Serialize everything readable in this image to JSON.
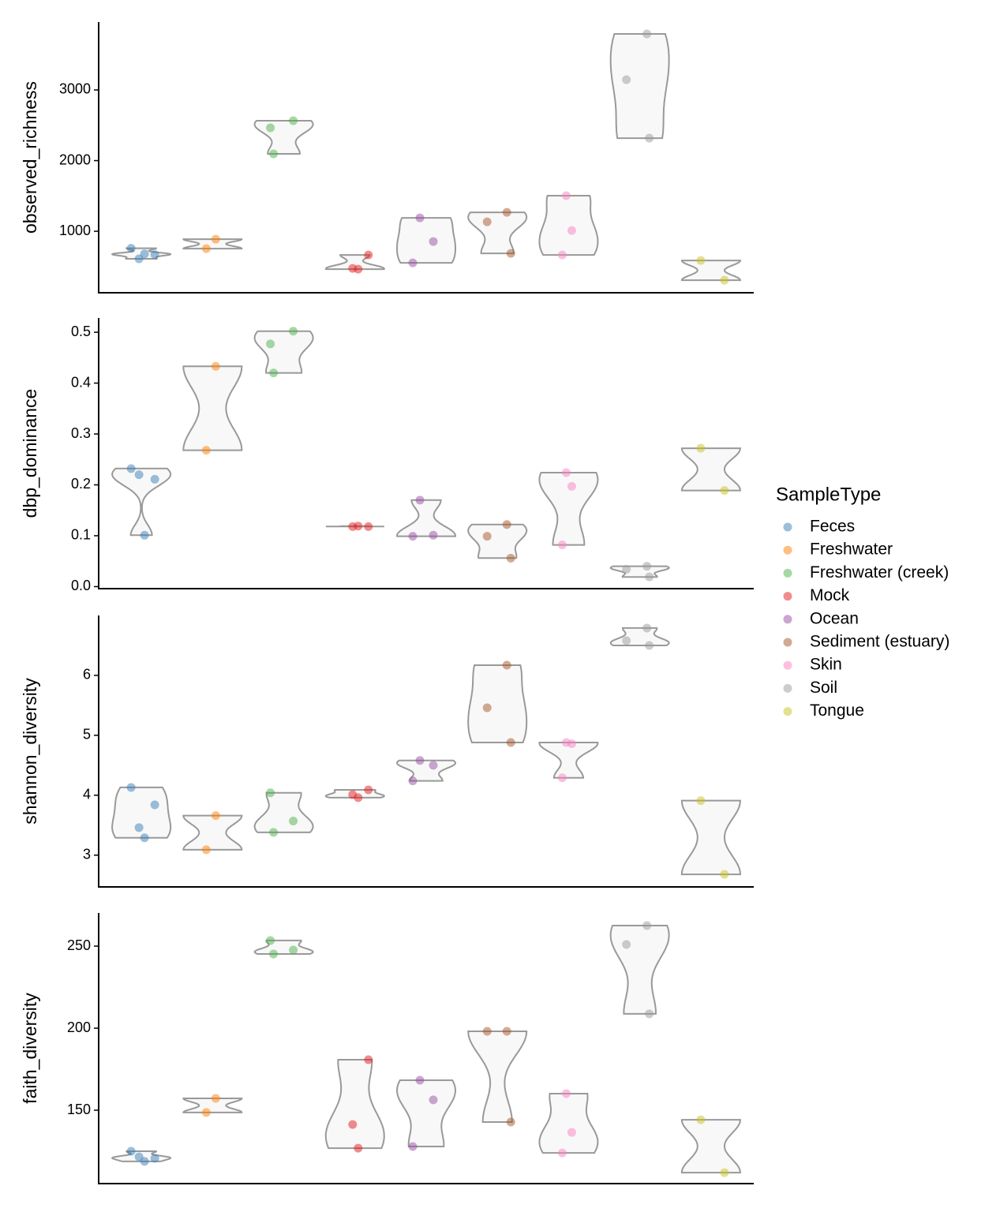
{
  "chart_data": [
    {
      "type": "violin",
      "ylabel": "observed_richness",
      "ylim": [
        130,
        3960
      ],
      "yticks": [
        1000,
        2000,
        3000
      ],
      "legend": "right",
      "legend_title": "SampleType",
      "series": [
        {
          "name": "Feces",
          "color": "#377eb8",
          "values": [
            760,
            670,
            610,
            680
          ]
        },
        {
          "name": "Freshwater",
          "color": "#ff7f00",
          "values": [
            888,
            754
          ]
        },
        {
          "name": "Freshwater (creek)",
          "color": "#4daf4a",
          "values": [
            2464,
            2564,
            2095
          ]
        },
        {
          "name": "Mock",
          "color": "#e41a1c",
          "values": [
            665,
            475,
            464
          ]
        },
        {
          "name": "Ocean",
          "color": "#984ea3",
          "values": [
            1190,
            855,
            553
          ]
        },
        {
          "name": "Sediment (estuary)",
          "color": "#a65628",
          "values": [
            1268,
            1134,
            687
          ]
        },
        {
          "name": "Skin",
          "color": "#f781bf",
          "values": [
            1503,
            1011,
            665
          ]
        },
        {
          "name": "Soil",
          "color": "#999999",
          "values": [
            3793,
            3145,
            2318
          ]
        },
        {
          "name": "Tongue",
          "color": "#c9c21f",
          "values": [
            587,
            307
          ]
        }
      ]
    },
    {
      "type": "violin",
      "ylabel": "dbp_dominance",
      "ylim": [
        -0.004,
        0.528
      ],
      "yticks": [
        {
          "value": 0,
          "label": "0.0"
        },
        0.1,
        0.2,
        0.3,
        0.4,
        0.5
      ],
      "series": [
        {
          "values": [
            0.232,
            0.211,
            0.22,
            0.101
          ]
        },
        {
          "values": [
            0.433,
            0.268
          ]
        },
        {
          "values": [
            0.477,
            0.502,
            0.42
          ]
        },
        {
          "values": [
            0.118,
            0.118,
            0.119
          ]
        },
        {
          "values": [
            0.17,
            0.101,
            0.099
          ]
        },
        {
          "values": [
            0.122,
            0.099,
            0.056
          ]
        },
        {
          "values": [
            0.224,
            0.197,
            0.082
          ]
        },
        {
          "values": [
            0.04,
            0.034,
            0.019
          ]
        },
        {
          "values": [
            0.272,
            0.189
          ]
        }
      ]
    },
    {
      "type": "violin",
      "ylabel": "shannon_diversity",
      "ylim": [
        2.47,
        7.0
      ],
      "yticks": [
        3,
        4,
        5,
        6
      ],
      "series": [
        {
          "values": [
            4.13,
            3.84,
            3.46,
            3.29
          ]
        },
        {
          "values": [
            3.66,
            3.09
          ]
        },
        {
          "values": [
            4.04,
            3.57,
            3.38
          ]
        },
        {
          "values": [
            4.09,
            4.01,
            3.96
          ]
        },
        {
          "values": [
            4.58,
            4.5,
            4.24
          ]
        },
        {
          "values": [
            6.17,
            5.46,
            4.88
          ]
        },
        {
          "values": [
            4.88,
            4.86,
            4.29
          ]
        },
        {
          "values": [
            6.79,
            6.58,
            6.5
          ]
        },
        {
          "values": [
            3.91,
            2.68
          ]
        }
      ]
    },
    {
      "type": "violin",
      "ylabel": "faith_diversity",
      "ylim": [
        105.3,
        270.2
      ],
      "yticks": [
        150,
        200,
        250
      ],
      "series": [
        {
          "values": [
            125.0,
            120.7,
            121.6,
            118.8
          ]
        },
        {
          "values": [
            157.2,
            148.6
          ]
        },
        {
          "values": [
            253.4,
            247.6,
            245.2
          ]
        },
        {
          "values": [
            180.8,
            141.3,
            126.9
          ]
        },
        {
          "values": [
            168.3,
            156.3,
            127.9
          ]
        },
        {
          "values": [
            198.1,
            198.1,
            142.8
          ]
        },
        {
          "values": [
            160.1,
            136.5,
            124.0
          ]
        },
        {
          "values": [
            262.5,
            251.0,
            208.7
          ]
        },
        {
          "values": [
            144.2,
            112.0
          ]
        }
      ]
    }
  ]
}
